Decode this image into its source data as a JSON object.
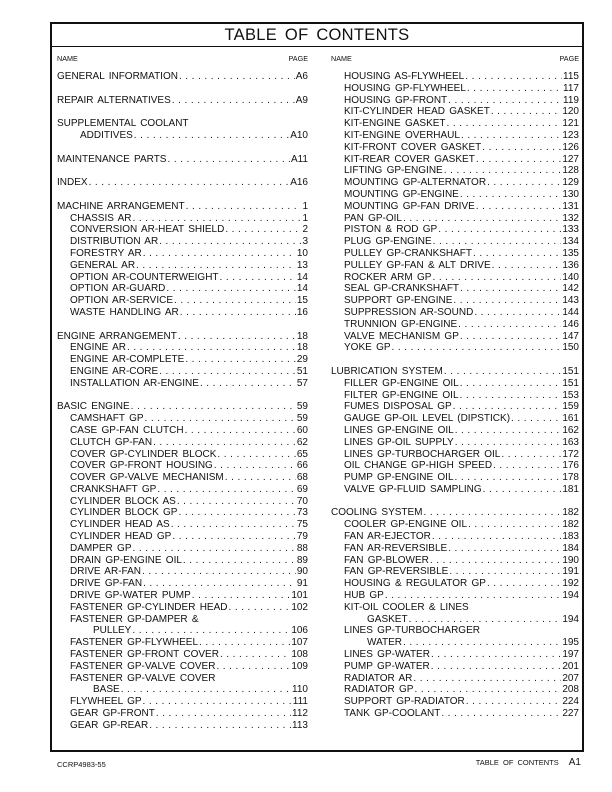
{
  "title": "TABLE OF CONTENTS",
  "left_column": {
    "header_name": "NAME",
    "header_page": "PAGE",
    "groups": [
      {
        "title": {
          "name": "GENERAL INFORMATION",
          "page": "A6"
        },
        "items": []
      },
      {
        "title": {
          "name": "REPAIR ALTERNATIVES",
          "page": "A9"
        },
        "items": []
      },
      {
        "title": {
          "name": "SUPPLEMENTAL COOLANT",
          "cont": "ADDITIVES",
          "page": "A10"
        },
        "items": []
      },
      {
        "title": {
          "name": "MAINTENANCE PARTS",
          "page": "A11"
        },
        "items": []
      },
      {
        "title": {
          "name": "INDEX",
          "page": "A16"
        },
        "items": []
      },
      {
        "title": {
          "name": "MACHINE ARRANGEMENT",
          "page": "1"
        },
        "items": [
          {
            "name": "CHASSIS AR",
            "page": "1"
          },
          {
            "name": "CONVERSION AR-HEAT SHIELD",
            "page": "2"
          },
          {
            "name": "DISTRIBUTION AR",
            "page": "3"
          },
          {
            "name": "FORESTRY AR",
            "page": "10"
          },
          {
            "name": "GENERAL AR",
            "page": "13"
          },
          {
            "name": "OPTION AR-COUNTERWEIGHT",
            "page": "14"
          },
          {
            "name": "OPTION AR-GUARD",
            "page": "14"
          },
          {
            "name": "OPTION AR-SERVICE",
            "page": "15"
          },
          {
            "name": "WASTE HANDLING AR",
            "page": "16"
          }
        ]
      },
      {
        "title": {
          "name": "ENGINE ARRANGEMENT",
          "page": "18"
        },
        "items": [
          {
            "name": "ENGINE AR",
            "page": "18"
          },
          {
            "name": "ENGINE AR-COMPLETE",
            "page": "29"
          },
          {
            "name": "ENGINE AR-CORE",
            "page": "51"
          },
          {
            "name": "INSTALLATION AR-ENGINE",
            "page": "57"
          }
        ]
      },
      {
        "title": {
          "name": "BASIC ENGINE",
          "page": "59"
        },
        "items": [
          {
            "name": "CAMSHAFT GP",
            "page": "59"
          },
          {
            "name": "CASE GP-FAN CLUTCH",
            "page": "60"
          },
          {
            "name": "CLUTCH GP-FAN",
            "page": "62"
          },
          {
            "name": "COVER GP-CYLINDER BLOCK",
            "page": "65"
          },
          {
            "name": "COVER GP-FRONT HOUSING",
            "page": "66"
          },
          {
            "name": "COVER GP-VALVE MECHANISM",
            "page": "68"
          },
          {
            "name": "CRANKSHAFT GP",
            "page": "69"
          },
          {
            "name": "CYLINDER BLOCK AS",
            "page": "70"
          },
          {
            "name": "CYLINDER BLOCK GP",
            "page": "73"
          },
          {
            "name": "CYLINDER HEAD AS",
            "page": "75"
          },
          {
            "name": "CYLINDER HEAD GP",
            "page": "79"
          },
          {
            "name": "DAMPER GP",
            "page": "88"
          },
          {
            "name": "DRAIN GP-ENGINE OIL",
            "page": "89"
          },
          {
            "name": "DRIVE AR-FAN",
            "page": "90"
          },
          {
            "name": "DRIVE GP-FAN",
            "page": "91"
          },
          {
            "name": "DRIVE GP-WATER PUMP",
            "page": "101"
          },
          {
            "name": "FASTENER GP-CYLINDER HEAD",
            "page": "102"
          },
          {
            "name": "FASTENER GP-DAMPER &",
            "cont": "PULLEY",
            "page": "106"
          },
          {
            "name": "FASTENER GP-FLYWHEEL",
            "page": "107"
          },
          {
            "name": "FASTENER GP-FRONT COVER",
            "page": "108"
          },
          {
            "name": "FASTENER GP-VALVE COVER",
            "page": "109"
          },
          {
            "name": "FASTENER GP-VALVE COVER",
            "cont": "BASE",
            "page": "110"
          },
          {
            "name": "FLYWHEEL GP",
            "page": "111"
          },
          {
            "name": "GEAR GP-FRONT",
            "page": "112"
          },
          {
            "name": "GEAR GP-REAR",
            "page": "113"
          }
        ]
      }
    ]
  },
  "right_column": {
    "header_name": "NAME",
    "header_page": "PAGE",
    "groups": [
      {
        "title": null,
        "items": [
          {
            "name": "HOUSING AS-FLYWHEEL",
            "page": "115"
          },
          {
            "name": "HOUSING GP-FLYWHEEL",
            "page": "117"
          },
          {
            "name": "HOUSING GP-FRONT",
            "page": "119"
          },
          {
            "name": "KIT-CYLINDER HEAD GASKET",
            "page": "120"
          },
          {
            "name": "KIT-ENGINE GASKET",
            "page": "121"
          },
          {
            "name": "KIT-ENGINE OVERHAUL",
            "page": "123"
          },
          {
            "name": "KIT-FRONT COVER GASKET",
            "page": "126"
          },
          {
            "name": "KIT-REAR COVER GASKET",
            "page": "127"
          },
          {
            "name": "LIFTING GP-ENGINE",
            "page": "128"
          },
          {
            "name": "MOUNTING GP-ALTERNATOR",
            "page": "129"
          },
          {
            "name": "MOUNTING GP-ENGINE",
            "page": "130"
          },
          {
            "name": "MOUNTING GP-FAN DRIVE",
            "page": "131"
          },
          {
            "name": "PAN GP-OIL",
            "page": "132"
          },
          {
            "name": "PISTON & ROD GP",
            "page": "133"
          },
          {
            "name": "PLUG GP-ENGINE",
            "page": "134"
          },
          {
            "name": "PULLEY GP-CRANKSHAFT",
            "page": "135"
          },
          {
            "name": "PULLEY GP-FAN & ALT DRIVE",
            "page": "136"
          },
          {
            "name": "ROCKER ARM GP",
            "page": "140"
          },
          {
            "name": "SEAL GP-CRANKSHAFT",
            "page": "142"
          },
          {
            "name": "SUPPORT GP-ENGINE",
            "page": "143"
          },
          {
            "name": "SUPPRESSION AR-SOUND",
            "page": "144"
          },
          {
            "name": "TRUNNION GP-ENGINE",
            "page": "146"
          },
          {
            "name": "VALVE MECHANISM GP",
            "page": "147"
          },
          {
            "name": "YOKE GP",
            "page": "150"
          }
        ]
      },
      {
        "title": {
          "name": "LUBRICATION SYSTEM",
          "page": "151"
        },
        "items": [
          {
            "name": "FILLER GP-ENGINE OIL",
            "page": "151"
          },
          {
            "name": "FILTER GP-ENGINE OIL",
            "page": "153"
          },
          {
            "name": "FUMES DISPOSAL GP",
            "page": "159"
          },
          {
            "name": "GAUGE GP-OIL LEVEL (DIPSTICK)",
            "page": "161"
          },
          {
            "name": "LINES GP-ENGINE OIL",
            "page": "162"
          },
          {
            "name": "LINES GP-OIL SUPPLY",
            "page": "163"
          },
          {
            "name": "LINES GP-TURBOCHARGER OIL",
            "page": "172"
          },
          {
            "name": "OIL CHANGE GP-HIGH SPEED",
            "page": "176"
          },
          {
            "name": "PUMP GP-ENGINE OIL",
            "page": "178"
          },
          {
            "name": "VALVE GP-FLUID SAMPLING",
            "page": "181"
          }
        ]
      },
      {
        "title": {
          "name": "COOLING SYSTEM",
          "page": "182"
        },
        "items": [
          {
            "name": "COOLER GP-ENGINE OIL",
            "page": "182"
          },
          {
            "name": "FAN AR-EJECTOR",
            "page": "183"
          },
          {
            "name": "FAN AR-REVERSIBLE",
            "page": "184"
          },
          {
            "name": "FAN GP-BLOWER",
            "page": "190"
          },
          {
            "name": "FAN GP-REVERSIBLE",
            "page": "191"
          },
          {
            "name": "HOUSING & REGULATOR GP",
            "page": "192"
          },
          {
            "name": "HUB GP",
            "page": "194"
          },
          {
            "name": "KIT-OIL COOLER & LINES",
            "cont": "GASKET",
            "page": "194"
          },
          {
            "name": "LINES GP-TURBOCHARGER",
            "cont": "WATER",
            "page": "195"
          },
          {
            "name": "LINES GP-WATER",
            "page": "197"
          },
          {
            "name": "PUMP GP-WATER",
            "page": "201"
          },
          {
            "name": "RADIATOR AR",
            "page": "207"
          },
          {
            "name": "RADIATOR GP",
            "page": "208"
          },
          {
            "name": "SUPPORT GP-RADIATOR",
            "page": "224"
          },
          {
            "name": "TANK GP-COOLANT",
            "page": "227"
          }
        ]
      }
    ]
  },
  "footer": {
    "doc_id": "CCRP4983-55",
    "section": "TABLE OF CONTENTS",
    "page_number": "A1"
  }
}
